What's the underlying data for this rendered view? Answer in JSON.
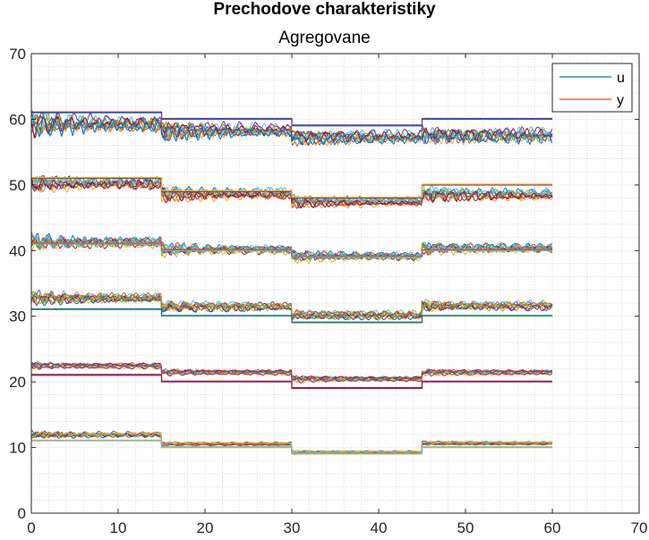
{
  "chart_data": {
    "type": "line",
    "title": "Prechodove charakteristiky",
    "subtitle": "Agregovane",
    "xlabel": "",
    "ylabel": "",
    "xlim": [
      0,
      70
    ],
    "ylim": [
      0,
      70
    ],
    "xticks": [
      0,
      10,
      20,
      30,
      40,
      50,
      60,
      70
    ],
    "yticks": [
      0,
      10,
      20,
      30,
      40,
      50,
      60,
      70
    ],
    "grid": "minor-dotted",
    "legend": {
      "placement": "top-right",
      "entries": [
        {
          "name": "u",
          "color": "#0072BD"
        },
        {
          "name": "y",
          "color": "#D95319"
        }
      ]
    },
    "colors": [
      "#0072BD",
      "#D95319",
      "#EDB120",
      "#7E2F8E",
      "#77AC30",
      "#4DBEEE",
      "#A2142F"
    ],
    "steps_at_x": [
      15,
      30,
      45
    ],
    "x_end": 60,
    "bands": [
      {
        "u_levels": [
          11,
          10,
          9,
          10
        ],
        "y_levels": [
          11.9,
          10.5,
          9.2,
          10.6
        ],
        "noise": [
          0.9,
          0.3,
          0.25,
          0.3
        ],
        "spread": 0.25,
        "lines": 10
      },
      {
        "u_levels": [
          21,
          20,
          19,
          20
        ],
        "y_levels": [
          22.5,
          21.5,
          20.5,
          21.5
        ],
        "noise": [
          0.7,
          0.6,
          0.6,
          0.6
        ],
        "spread": 0.3,
        "lines": 10
      },
      {
        "u_levels": [
          31,
          30,
          29,
          30
        ],
        "y_levels": [
          32.8,
          31.5,
          30.2,
          31.6
        ],
        "noise": [
          1.6,
          1.4,
          1.3,
          1.4
        ],
        "spread": 0.35,
        "lines": 10
      },
      {
        "u_levels": [
          41,
          40,
          39,
          40
        ],
        "y_levels": [
          41.2,
          40.1,
          39.1,
          40.3
        ],
        "noise": [
          2.0,
          1.5,
          1.3,
          1.5
        ],
        "spread": 0.35,
        "lines": 10
      },
      {
        "u_levels": [
          51,
          49,
          48,
          50
        ],
        "y_levels": [
          50.2,
          48.6,
          47.4,
          48.5
        ],
        "noise": [
          2.0,
          1.8,
          1.3,
          1.8
        ],
        "spread": 0.4,
        "lines": 10
      },
      {
        "u_levels": [
          61,
          60,
          59,
          60
        ],
        "y_levels": [
          59.3,
          58.3,
          57.3,
          57.6
        ],
        "noise": [
          3.0,
          2.3,
          2.0,
          2.4
        ],
        "spread": 0.45,
        "lines": 10
      }
    ]
  }
}
